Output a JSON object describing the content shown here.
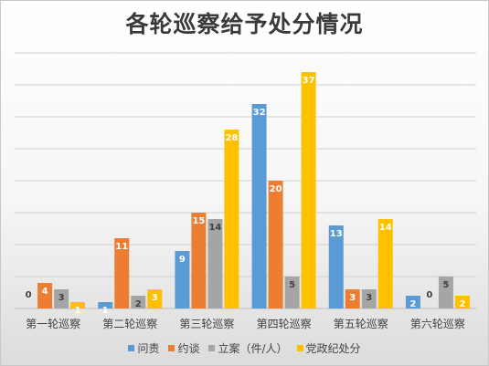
{
  "chart_data": {
    "type": "bar",
    "title": "各轮巡察给予处分情况",
    "categories": [
      "第一轮巡察",
      "第二轮巡察",
      "第三轮巡察",
      "第四轮巡察",
      "第五轮巡察",
      "第六轮巡察"
    ],
    "series": [
      {
        "name": "问责",
        "color": "#5b9bd5",
        "values": [
          0,
          1,
          9,
          32,
          13,
          2
        ]
      },
      {
        "name": "约谈",
        "color": "#ed7d31",
        "values": [
          4,
          11,
          15,
          20,
          3,
          0
        ]
      },
      {
        "name": "立案（件/人）",
        "color": "#a5a5a5",
        "values": [
          3,
          2,
          14,
          5,
          3,
          5
        ]
      },
      {
        "name": "党政纪处分",
        "color": "#ffc000",
        "values": [
          1,
          3,
          28,
          37,
          14,
          2
        ]
      }
    ],
    "ylim": [
      0,
      40
    ],
    "gridlines": true,
    "legend": "bottom",
    "xlabel": "",
    "ylabel": ""
  }
}
